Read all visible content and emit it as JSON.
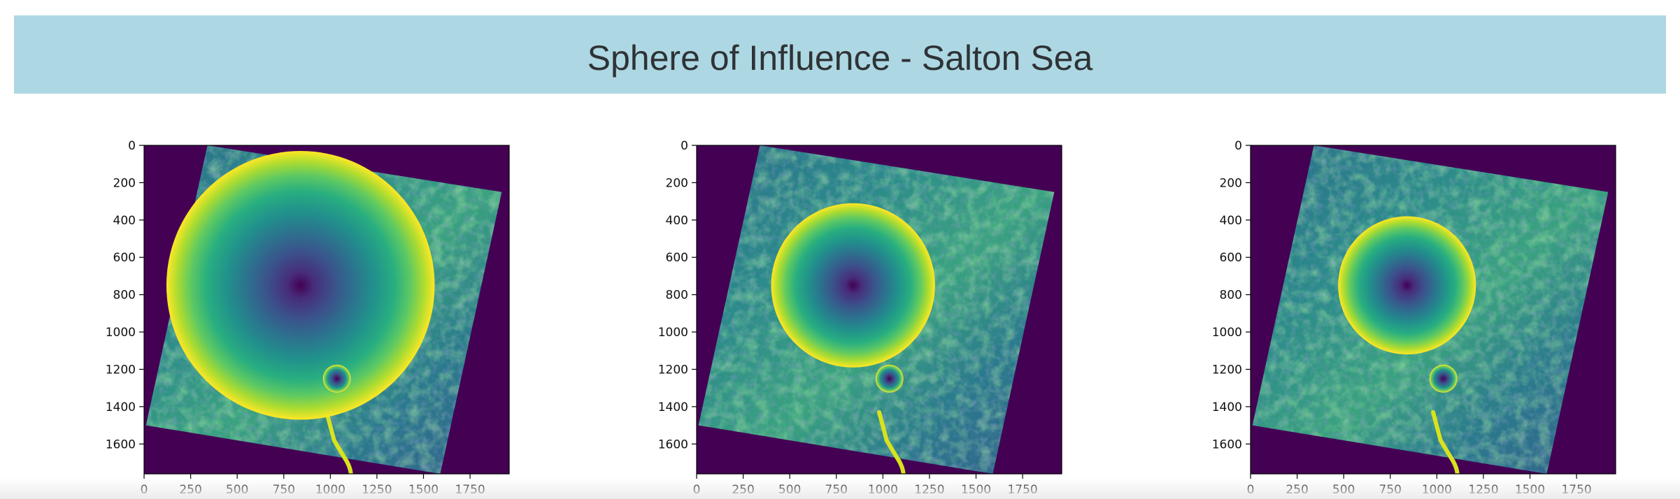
{
  "header": {
    "title": "Sphere of Influence - Salton Sea"
  },
  "colors": {
    "banner": "#add8e3",
    "background_purple": "#440154",
    "terrain_dark": "#2d7088",
    "terrain_mid": "#23998a",
    "terrain_light": "#5cc863",
    "circle_center": "#440154",
    "circle_edge": "#fde725"
  },
  "chart_data": [
    {
      "type": "heatmap",
      "colormap": "viridis",
      "title": "",
      "xlabel": "",
      "ylabel": "",
      "xlim": [
        0,
        1960
      ],
      "ylim": [
        1760,
        0
      ],
      "xticks": [
        "0",
        "250",
        "500",
        "750",
        "1000",
        "1250",
        "1500",
        "1750"
      ],
      "yticks": [
        "0",
        "200",
        "400",
        "600",
        "800",
        "1000",
        "1200",
        "1400",
        "1600"
      ],
      "circles": [
        {
          "name": "large",
          "cx": 840,
          "cy": 750,
          "r": 720
        },
        {
          "name": "small",
          "cx": 1035,
          "cy": 1250,
          "r": 75
        }
      ]
    },
    {
      "type": "heatmap",
      "colormap": "viridis",
      "title": "",
      "xlabel": "",
      "ylabel": "",
      "xlim": [
        0,
        1960
      ],
      "ylim": [
        1760,
        0
      ],
      "xticks": [
        "0",
        "250",
        "500",
        "750",
        "1000",
        "1250",
        "1500",
        "1750"
      ],
      "yticks": [
        "0",
        "200",
        "400",
        "600",
        "800",
        "1000",
        "1200",
        "1400",
        "1600"
      ],
      "circles": [
        {
          "name": "large",
          "cx": 840,
          "cy": 750,
          "r": 440
        },
        {
          "name": "small",
          "cx": 1035,
          "cy": 1250,
          "r": 75
        }
      ]
    },
    {
      "type": "heatmap",
      "colormap": "viridis",
      "title": "",
      "xlabel": "",
      "ylabel": "",
      "xlim": [
        0,
        1960
      ],
      "ylim": [
        1760,
        0
      ],
      "xticks": [
        "0",
        "250",
        "500",
        "750",
        "1000",
        "1250",
        "1500",
        "1750"
      ],
      "yticks": [
        "0",
        "200",
        "400",
        "600",
        "800",
        "1000",
        "1200",
        "1400",
        "1600"
      ],
      "circles": [
        {
          "name": "large",
          "cx": 840,
          "cy": 750,
          "r": 370
        },
        {
          "name": "small",
          "cx": 1035,
          "cy": 1250,
          "r": 75
        }
      ]
    }
  ]
}
